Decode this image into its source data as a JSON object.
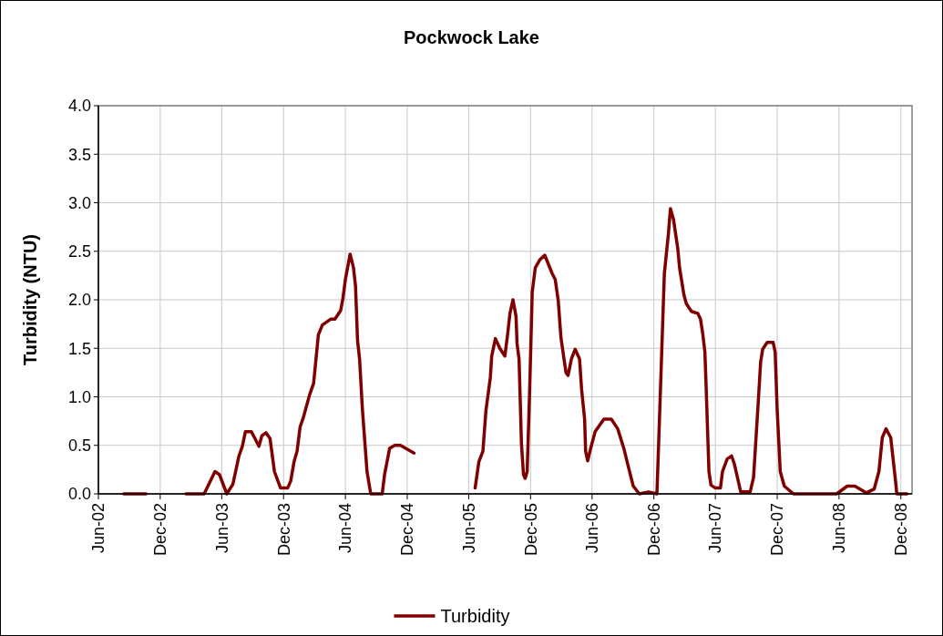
{
  "chart_data": {
    "type": "line",
    "title": "Pockwock Lake",
    "ylabel": "Turbidity (NTU)",
    "xlim": [
      "2002-06-01",
      "2009-01-03"
    ],
    "xticks": [
      {
        "value": "2002-06-01",
        "label": "Jun-02"
      },
      {
        "value": "2002-12-01",
        "label": "Dec-02"
      },
      {
        "value": "2003-06-01",
        "label": "Jun-03"
      },
      {
        "value": "2003-12-01",
        "label": "Dec-03"
      },
      {
        "value": "2004-06-01",
        "label": "Jun-04"
      },
      {
        "value": "2004-12-01",
        "label": "Dec-04"
      },
      {
        "value": "2005-06-01",
        "label": "Jun-05"
      },
      {
        "value": "2005-12-01",
        "label": "Dec-05"
      },
      {
        "value": "2006-06-01",
        "label": "Jun-06"
      },
      {
        "value": "2006-12-01",
        "label": "Dec-06"
      },
      {
        "value": "2007-06-01",
        "label": "Jun-07"
      },
      {
        "value": "2007-12-01",
        "label": "Dec-07"
      },
      {
        "value": "2008-06-01",
        "label": "Jun-08"
      },
      {
        "value": "2008-12-01",
        "label": "Dec-08"
      }
    ],
    "ylim": [
      0,
      4
    ],
    "yticks": [
      {
        "value": 0,
        "label": "0.0"
      },
      {
        "value": 0.5,
        "label": "0.5"
      },
      {
        "value": 1,
        "label": "1.0"
      },
      {
        "value": 1.5,
        "label": "1.5"
      },
      {
        "value": 2,
        "label": "2.0"
      },
      {
        "value": 2.5,
        "label": "2.5"
      },
      {
        "value": 3,
        "label": "3.0"
      },
      {
        "value": 3.5,
        "label": "3.5"
      },
      {
        "value": 4,
        "label": "4.0"
      }
    ],
    "grid": true,
    "legend": "bottom",
    "marker": "none",
    "line_style": "solid",
    "series": [
      {
        "name": "Turbidity",
        "color": "#800000",
        "x": [
          "2002-08-15",
          "2002-10-20",
          "2002-12-20",
          "2003-02-15",
          "2003-04-10",
          "2003-05-12",
          "2003-05-25",
          "2003-06-16",
          "2003-07-04",
          "2003-07-22",
          "2003-08-01",
          "2003-08-10",
          "2003-08-28",
          "2003-09-06",
          "2003-09-19",
          "2003-09-28",
          "2003-10-10",
          "2003-10-22",
          "2003-11-04",
          "2003-11-22",
          "2003-12-13",
          "2003-12-22",
          "2004-01-01",
          "2004-01-10",
          "2004-01-19",
          "2004-01-28",
          "2004-02-16",
          "2004-02-28",
          "2004-03-08",
          "2004-03-13",
          "2004-03-25",
          "2004-04-18",
          "2004-05-01",
          "2004-05-18",
          "2004-05-25",
          "2004-06-01",
          "2004-06-15",
          "2004-06-25",
          "2004-07-01",
          "2004-07-07",
          "2004-07-13",
          "2004-07-21",
          "2004-08-04",
          "2004-08-15",
          "2004-09-18",
          "2004-09-25",
          "2004-10-10",
          "2004-10-25",
          "2004-11-11",
          "2004-12-21",
          "2005-03-01",
          "2005-06-20",
          "2005-07-01",
          "2005-07-13",
          "2005-07-22",
          "2005-08-04",
          "2005-08-08",
          "2005-08-19",
          "2005-09-01",
          "2005-09-16",
          "2005-09-25",
          "2005-10-01",
          "2005-10-10",
          "2005-10-19",
          "2005-10-22",
          "2005-10-28",
          "2005-11-04",
          "2005-11-10",
          "2005-11-15",
          "2005-11-21",
          "2005-11-28",
          "2005-12-06",
          "2005-12-15",
          "2005-12-28",
          "2006-01-12",
          "2006-02-03",
          "2006-02-12",
          "2006-02-21",
          "2006-03-01",
          "2006-03-10",
          "2006-03-16",
          "2006-03-22",
          "2006-04-01",
          "2006-04-12",
          "2006-04-25",
          "2006-05-01",
          "2006-05-10",
          "2006-05-13",
          "2006-05-19",
          "2006-05-28",
          "2006-06-10",
          "2006-07-06",
          "2006-07-28",
          "2006-08-16",
          "2006-09-03",
          "2006-09-15",
          "2006-10-01",
          "2006-10-19",
          "2006-11-15",
          "2006-12-10",
          "2006-12-16",
          "2007-01-01",
          "2007-01-13",
          "2007-01-19",
          "2007-01-28",
          "2007-02-10",
          "2007-02-15",
          "2007-02-28",
          "2007-03-07",
          "2007-03-22",
          "2007-04-10",
          "2007-04-18",
          "2007-04-25",
          "2007-05-01",
          "2007-05-04",
          "2007-05-13",
          "2007-05-19",
          "2007-06-01",
          "2007-06-16",
          "2007-06-22",
          "2007-07-06",
          "2007-07-19",
          "2007-07-27",
          "2007-08-15",
          "2007-09-12",
          "2007-09-22",
          "2007-10-06",
          "2007-10-13",
          "2007-10-19",
          "2007-11-01",
          "2007-11-19",
          "2007-11-25",
          "2007-12-01",
          "2007-12-10",
          "2007-12-22",
          "2008-01-18",
          "2008-05-25",
          "2008-06-25",
          "2008-07-18",
          "2008-08-21",
          "2008-09-13",
          "2008-09-27",
          "2008-10-07",
          "2008-10-18",
          "2008-11-01",
          "2008-11-15",
          "2008-11-19",
          "2008-12-06",
          "2008-12-19"
        ],
        "values": [
          0,
          0,
          null,
          0,
          0,
          0.23,
          0.2,
          0,
          0.1,
          0.39,
          0.49,
          0.64,
          0.64,
          0.58,
          0.49,
          0.6,
          0.63,
          0.57,
          0.23,
          0.06,
          0.06,
          0.13,
          0.33,
          0.44,
          0.69,
          0.78,
          1.02,
          1.14,
          1.46,
          1.64,
          1.74,
          1.8,
          1.8,
          1.89,
          2.02,
          2.21,
          2.47,
          2.33,
          2.14,
          1.58,
          1.39,
          0.89,
          0.23,
          0,
          0,
          0.2,
          0.47,
          0.5,
          0.5,
          0.42,
          null,
          0.06,
          0.33,
          0.44,
          0.86,
          1.2,
          1.42,
          1.6,
          1.5,
          1.42,
          1.67,
          1.86,
          2.0,
          1.83,
          1.55,
          1.39,
          0.52,
          0.2,
          0.16,
          0.23,
          1.02,
          2.08,
          2.33,
          2.41,
          2.46,
          2.27,
          2.21,
          1.99,
          1.61,
          1.39,
          1.25,
          1.22,
          1.39,
          1.49,
          1.39,
          1.08,
          0.77,
          0.44,
          0.34,
          0.47,
          0.64,
          0.77,
          0.77,
          0.67,
          0.47,
          0.3,
          0.08,
          0,
          0.02,
          0,
          0.61,
          2.27,
          2.68,
          2.94,
          2.83,
          2.52,
          2.33,
          2.05,
          1.96,
          1.88,
          1.86,
          1.8,
          1.64,
          1.46,
          1.17,
          0.23,
          0.09,
          0.06,
          0.06,
          0.23,
          0.36,
          0.39,
          0.31,
          0.02,
          0.02,
          0.17,
          0.95,
          1.36,
          1.49,
          1.56,
          1.56,
          1.46,
          0.86,
          0.23,
          0.08,
          0,
          0,
          0.08,
          0.08,
          0.01,
          0.05,
          0.23,
          0.58,
          0.67,
          0.58,
          0.14,
          0,
          0,
          0
        ]
      }
    ]
  }
}
